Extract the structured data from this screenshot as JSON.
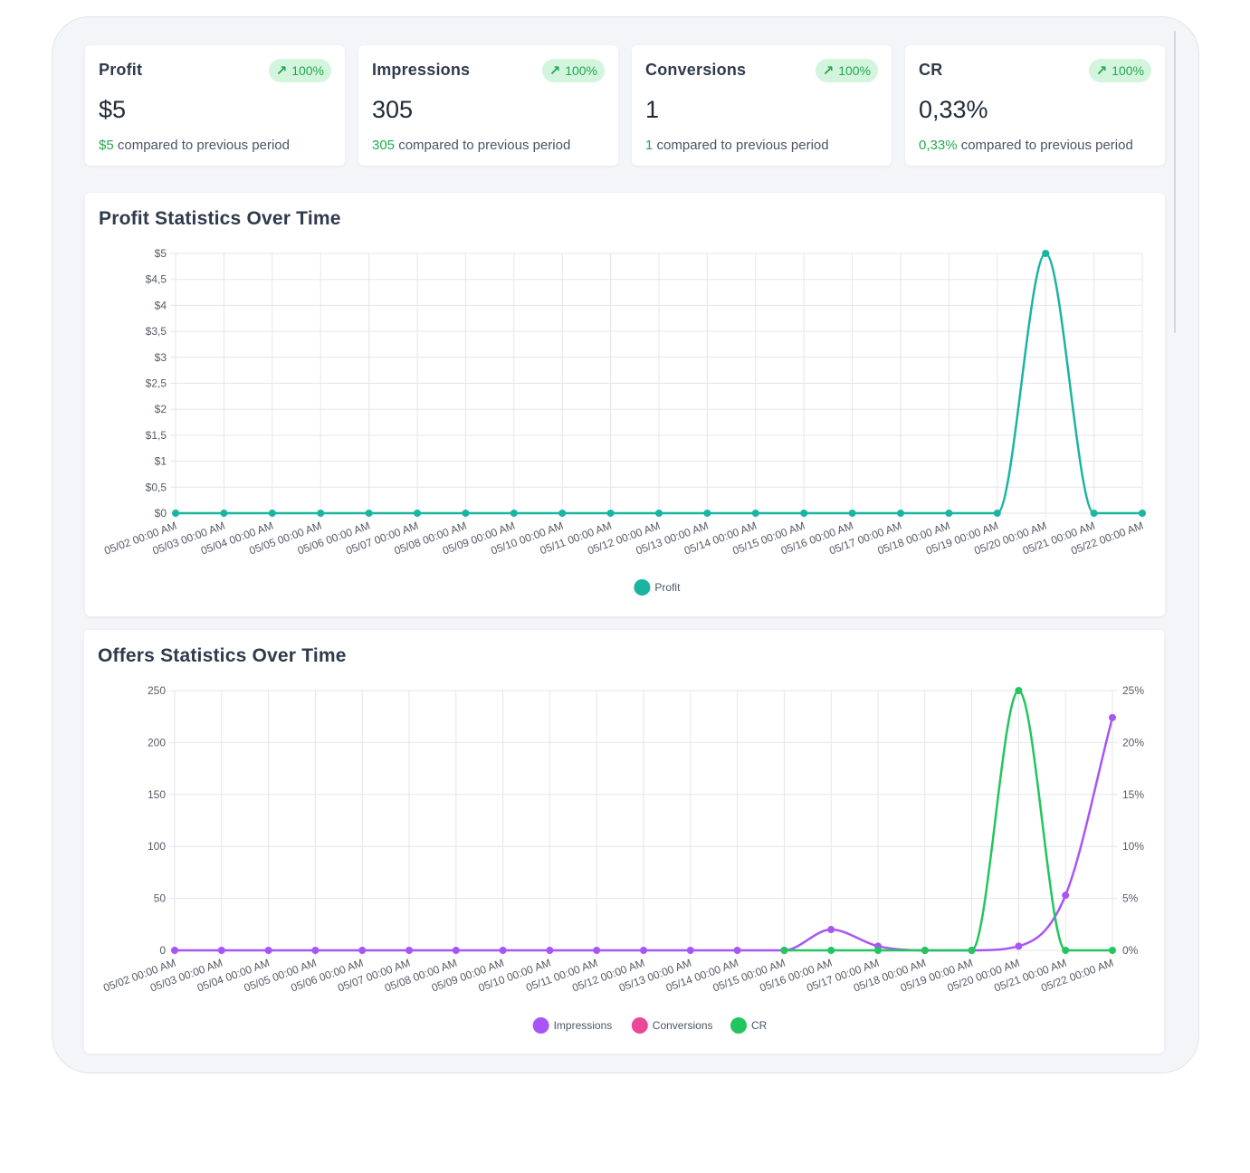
{
  "stats": [
    {
      "title": "Profit",
      "badge": "100%",
      "value": "$5",
      "compare_highlight": "$5",
      "compare_text": " compared to previous period"
    },
    {
      "title": "Impressions",
      "badge": "100%",
      "value": "305",
      "compare_highlight": "305",
      "compare_text": " compared to previous period"
    },
    {
      "title": "Conversions",
      "badge": "100%",
      "value": "1",
      "compare_highlight": "1",
      "compare_text": " compared to previous period"
    },
    {
      "title": "CR",
      "badge": "100%",
      "value": "0,33%",
      "compare_highlight": "0,33%",
      "compare_text": " compared to previous period"
    }
  ],
  "badge_icon": "arrow-up-right-icon",
  "colors": {
    "accent_green": "#21a84c",
    "badge_bg": "#d3f5dd",
    "profit": "#1ab5a0",
    "impressions": "#a855f7",
    "conversions": "#ec4899",
    "cr": "#22c55e"
  },
  "chart_data": [
    {
      "type": "line",
      "title": "Profit Statistics Over Time",
      "x": [
        "05/02 00:00 AM",
        "05/03 00:00 AM",
        "05/04 00:00 AM",
        "05/05 00:00 AM",
        "05/06 00:00 AM",
        "05/07 00:00 AM",
        "05/08 00:00 AM",
        "05/09 00:00 AM",
        "05/10 00:00 AM",
        "05/11 00:00 AM",
        "05/12 00:00 AM",
        "05/13 00:00 AM",
        "05/14 00:00 AM",
        "05/15 00:00 AM",
        "05/16 00:00 AM",
        "05/17 00:00 AM",
        "05/18 00:00 AM",
        "05/19 00:00 AM",
        "05/20 00:00 AM",
        "05/21 00:00 AM",
        "05/22 00:00 AM"
      ],
      "series": [
        {
          "name": "Profit",
          "color": "#1ab5a0",
          "values": [
            0,
            0,
            0,
            0,
            0,
            0,
            0,
            0,
            0,
            0,
            0,
            0,
            0,
            0,
            0,
            0,
            0,
            0,
            5,
            0,
            0
          ]
        }
      ],
      "ylim": [
        0,
        5
      ],
      "yticks": [
        0,
        0.5,
        1,
        1.5,
        2,
        2.5,
        3,
        3.5,
        4,
        4.5,
        5
      ],
      "ytick_labels": [
        "$0",
        "$0,5",
        "$1",
        "$1,5",
        "$2",
        "$2,5",
        "$3",
        "$3,5",
        "$4",
        "$4,5",
        "$5"
      ],
      "grid": true,
      "legend": "bottom"
    },
    {
      "type": "line",
      "title": "Offers Statistics Over Time",
      "x": [
        "05/02 00:00 AM",
        "05/03 00:00 AM",
        "05/04 00:00 AM",
        "05/05 00:00 AM",
        "05/06 00:00 AM",
        "05/07 00:00 AM",
        "05/08 00:00 AM",
        "05/09 00:00 AM",
        "05/10 00:00 AM",
        "05/11 00:00 AM",
        "05/12 00:00 AM",
        "05/13 00:00 AM",
        "05/14 00:00 AM",
        "05/15 00:00 AM",
        "05/16 00:00 AM",
        "05/17 00:00 AM",
        "05/18 00:00 AM",
        "05/19 00:00 AM",
        "05/20 00:00 AM",
        "05/21 00:00 AM",
        "05/22 00:00 AM"
      ],
      "series": [
        {
          "name": "Impressions",
          "color": "#a855f7",
          "axis": "left",
          "values": [
            0,
            0,
            0,
            0,
            0,
            0,
            0,
            0,
            0,
            0,
            0,
            0,
            0,
            0,
            20,
            4,
            0,
            0,
            4,
            53,
            224
          ]
        },
        {
          "name": "Conversions",
          "color": "#ec4899",
          "axis": "left",
          "values": [
            null,
            null,
            null,
            null,
            null,
            null,
            null,
            null,
            null,
            null,
            null,
            null,
            null,
            null,
            null,
            null,
            null,
            null,
            null,
            null,
            null
          ]
        },
        {
          "name": "CR",
          "color": "#22c55e",
          "axis": "right",
          "values": [
            null,
            null,
            null,
            null,
            null,
            null,
            null,
            null,
            null,
            null,
            null,
            null,
            null,
            0,
            0,
            0,
            0,
            0,
            25,
            0,
            0
          ]
        }
      ],
      "ylim": [
        0,
        250
      ],
      "yticks": [
        0,
        50,
        100,
        150,
        200,
        250
      ],
      "ytick_labels": [
        "0",
        "50",
        "100",
        "150",
        "200",
        "250"
      ],
      "y2lim": [
        0,
        25
      ],
      "y2ticks": [
        0,
        5,
        10,
        15,
        20,
        25
      ],
      "y2tick_labels": [
        "0%",
        "5%",
        "10%",
        "15%",
        "20%",
        "25%"
      ],
      "grid": true,
      "legend": "bottom"
    }
  ]
}
